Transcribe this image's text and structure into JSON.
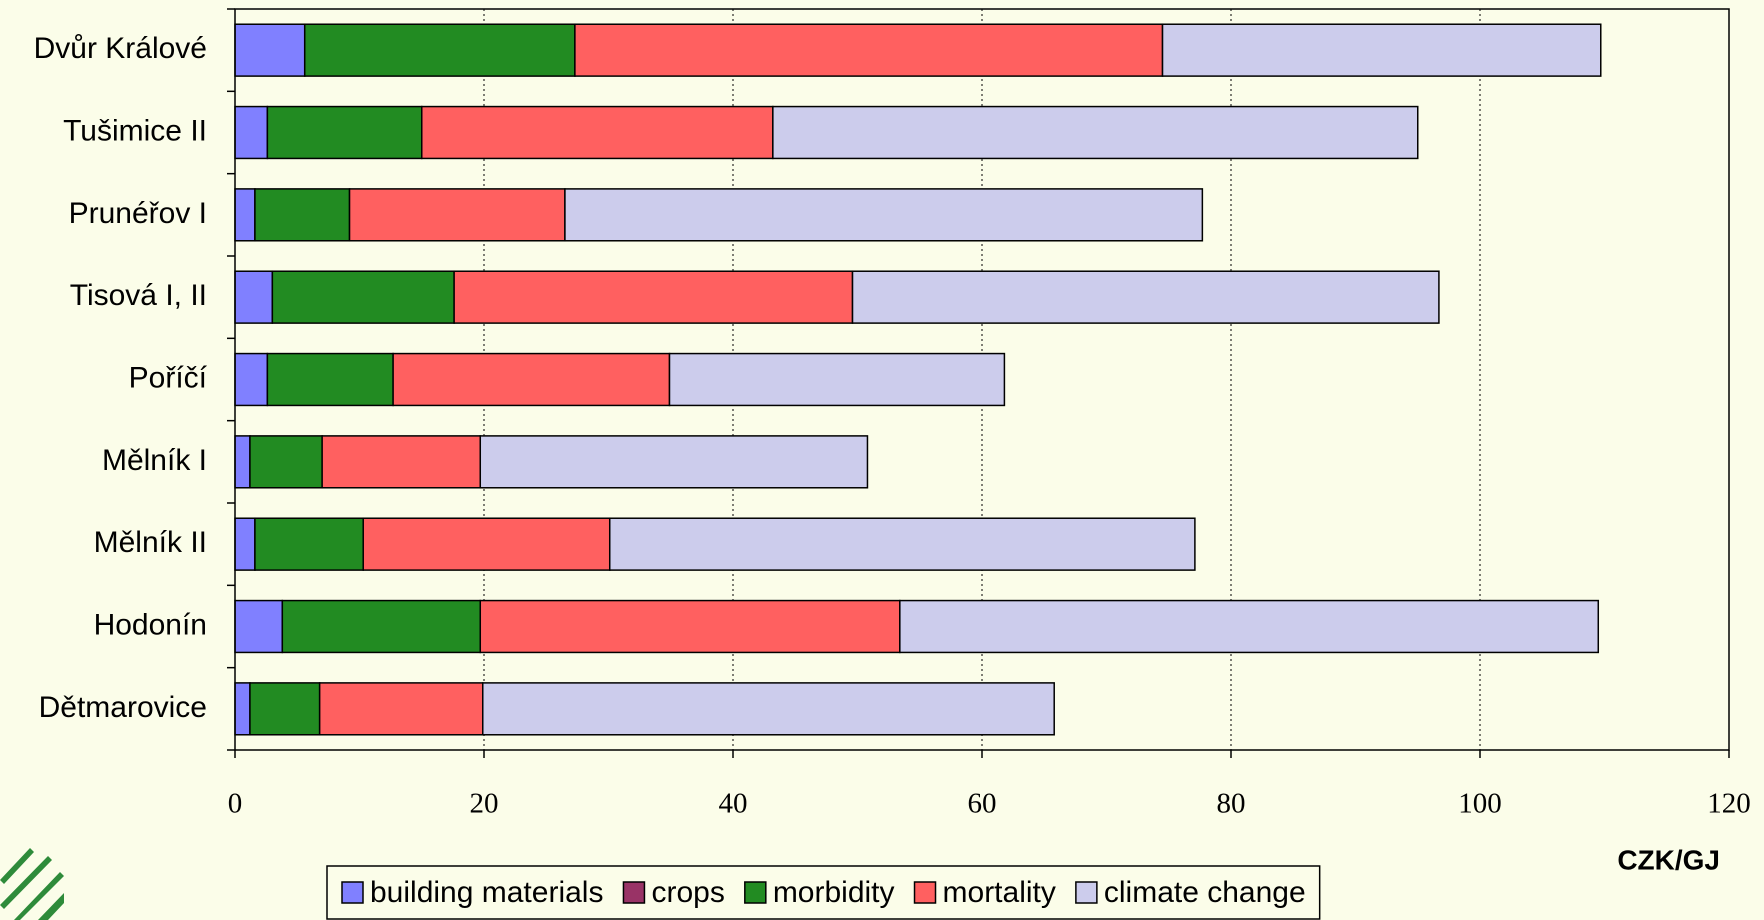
{
  "chart_data": {
    "type": "stacked_bar_horizontal",
    "categories": [
      "Dvůr Králové",
      "Tušimice II",
      "Prunéřov I",
      "Tisová I, II",
      "Poříčí",
      "Mělník I",
      "Mělník II",
      "Hodonín",
      "Dětmarovice"
    ],
    "series": [
      {
        "name": "building materials",
        "color": "#8080ff",
        "values": [
          5.6,
          2.6,
          1.6,
          3.0,
          2.6,
          1.2,
          1.6,
          3.8,
          1.2
        ]
      },
      {
        "name": "crops",
        "color": "#993366",
        "values": [
          0,
          0,
          0,
          0,
          0,
          0,
          0,
          0,
          0
        ]
      },
      {
        "name": "morbidity",
        "color": "#228b22",
        "values": [
          21.7,
          12.4,
          7.6,
          14.6,
          10.1,
          5.8,
          8.7,
          15.9,
          5.6
        ]
      },
      {
        "name": "mortality",
        "color": "#ff6060",
        "values": [
          47.2,
          28.2,
          17.3,
          32.0,
          22.2,
          12.7,
          19.8,
          33.7,
          13.1
        ]
      },
      {
        "name": "climate change",
        "color": "#ccccec",
        "values": [
          35.2,
          51.8,
          51.2,
          47.1,
          26.9,
          31.1,
          47.0,
          56.1,
          45.9
        ]
      }
    ],
    "xlim": [
      0,
      120
    ],
    "xticks": [
      0,
      20,
      40,
      60,
      80,
      100,
      120
    ],
    "x_label": "CZK/GJ",
    "grid": true
  }
}
